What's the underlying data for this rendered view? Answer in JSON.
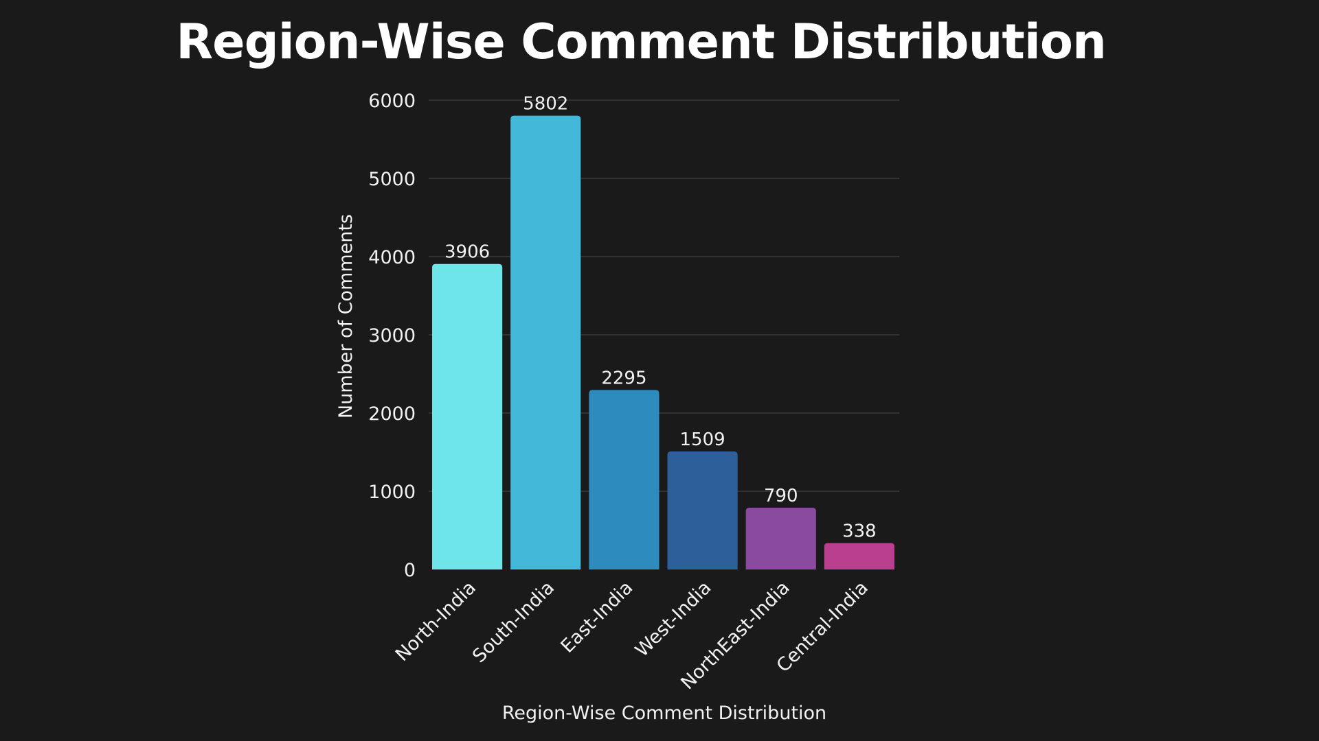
{
  "chart_data": {
    "type": "bar",
    "title": "Region-Wise Comment Distribution",
    "xlabel": "Region-Wise Comment Distribution",
    "ylabel": "Number of Comments",
    "categories": [
      "North-India",
      "South-India",
      "East-India",
      "West-India",
      "NorthEast-India",
      "Central-India"
    ],
    "values": [
      3906,
      5802,
      2295,
      1509,
      790,
      338
    ],
    "colors": [
      "#6de5e9",
      "#43b8d8",
      "#2e8bbd",
      "#2d5f9a",
      "#8a4b9f",
      "#bb3f8f"
    ],
    "ylim": [
      0,
      6000
    ],
    "yticks": [
      0,
      1000,
      2000,
      3000,
      4000,
      5000,
      6000
    ],
    "grid": true,
    "legend": "none",
    "background": "#1a1a1a"
  }
}
